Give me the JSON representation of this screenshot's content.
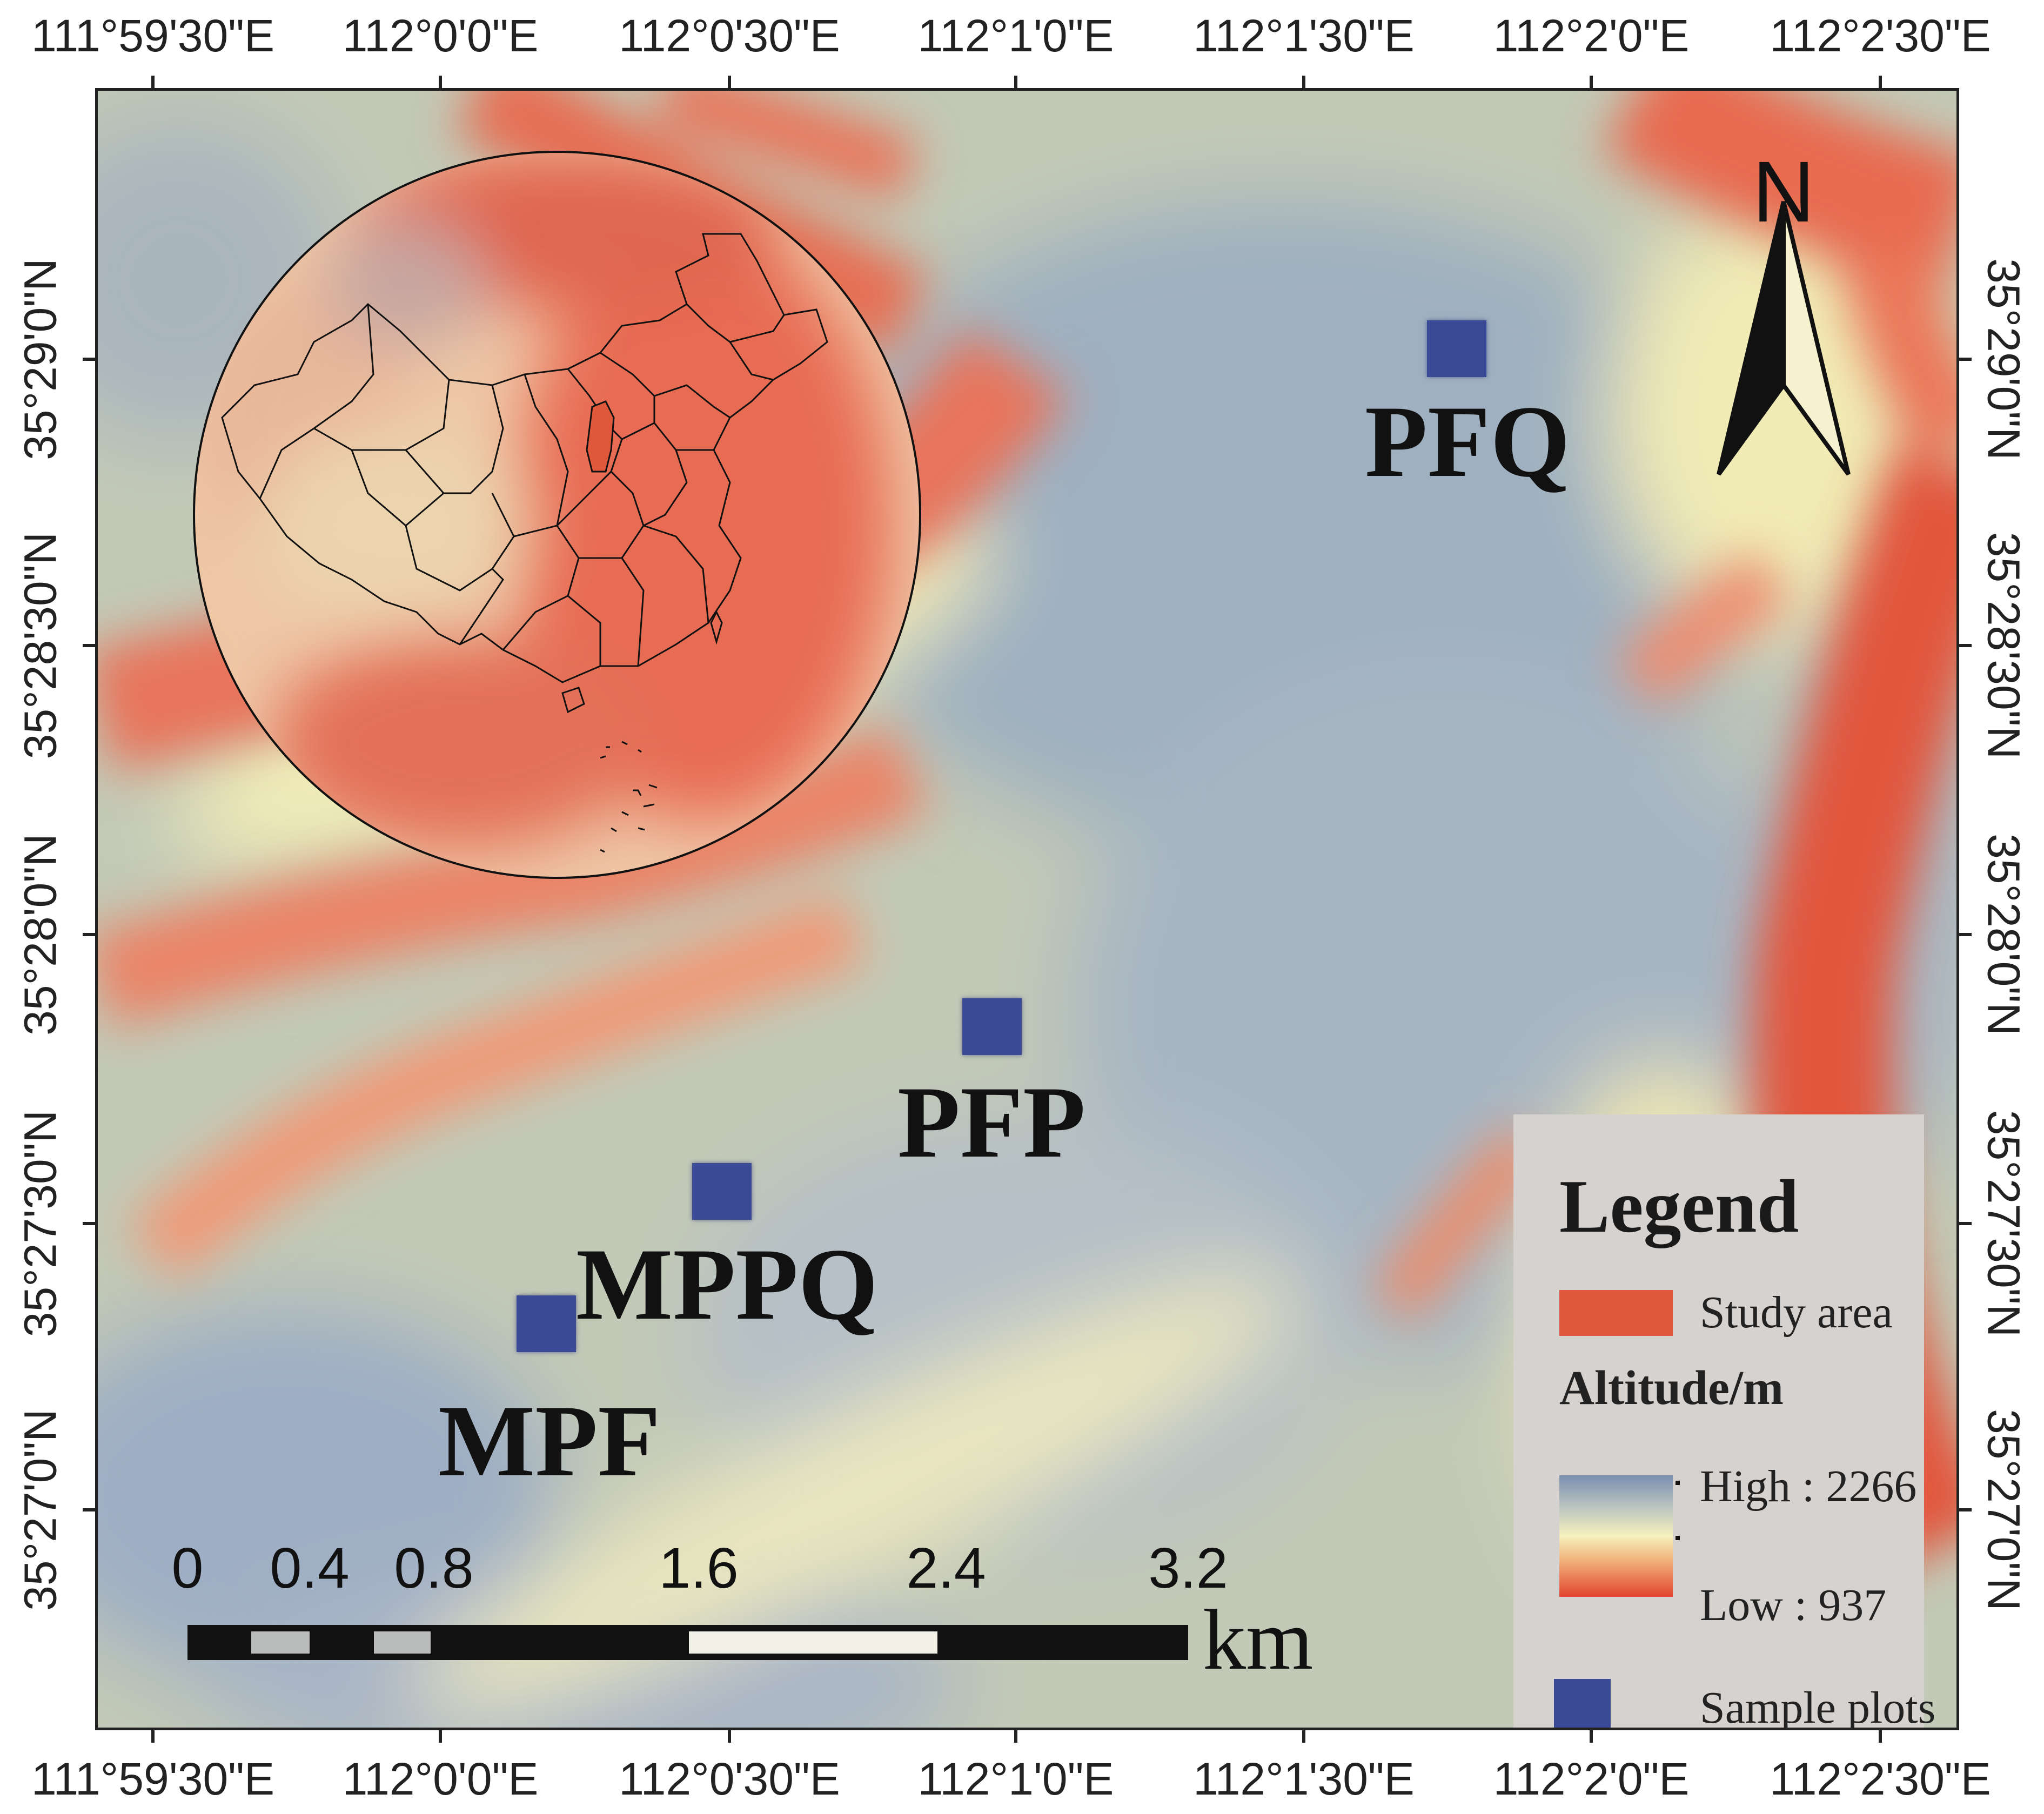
{
  "longitude_labels": [
    "111°59'30\"E",
    "112°0'0\"E",
    "112°0'30\"E",
    "112°1'0\"E",
    "112°1'30\"E",
    "112°2'0\"E",
    "112°2'30\"E"
  ],
  "latitude_labels": [
    "35°29'0\"N",
    "35°28'30\"N",
    "35°28'0\"N",
    "35°27'30\"N",
    "35°27'0\"N"
  ],
  "sites": [
    {
      "name": "PFQ"
    },
    {
      "name": "PFP"
    },
    {
      "name": "MPPQ"
    },
    {
      "name": "MPF"
    }
  ],
  "north_arrow": {
    "label": "N"
  },
  "legend": {
    "title": "Legend",
    "study_area": "Study area",
    "altitude_title": "Altitude/m",
    "high": "High : 2266",
    "low": "Low : 937",
    "sample_plots": "Sample plots"
  },
  "scale_bar": {
    "labels": [
      "0",
      "0.4",
      "0.8",
      "1.6",
      "2.4",
      "3.2"
    ],
    "unit": "km"
  },
  "colors": {
    "sample_plot": "#3b4a97",
    "study_area": "#e0583b",
    "altitude_high": "#7a8fb0",
    "altitude_mid": "#f6f1bd",
    "altitude_low": "#e0452e"
  }
}
